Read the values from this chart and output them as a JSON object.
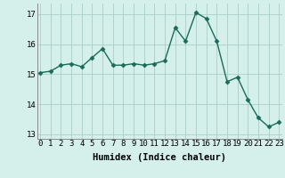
{
  "x": [
    0,
    1,
    2,
    3,
    4,
    5,
    6,
    7,
    8,
    9,
    10,
    11,
    12,
    13,
    14,
    15,
    16,
    17,
    18,
    19,
    20,
    21,
    22,
    23
  ],
  "y": [
    15.05,
    15.1,
    15.3,
    15.35,
    15.25,
    15.55,
    15.85,
    15.3,
    15.3,
    15.35,
    15.3,
    15.35,
    15.45,
    16.55,
    16.1,
    17.05,
    16.85,
    16.1,
    14.75,
    14.9,
    14.15,
    13.55,
    13.25,
    13.4
  ],
  "line_color": "#1a6b5a",
  "marker": "D",
  "marker_size": 2.5,
  "line_width": 1.0,
  "bg_color": "#d5f0eb",
  "grid_color": "#aacec8",
  "xlabel": "Humidex (Indice chaleur)",
  "tick_fontsize": 6.5,
  "xlabel_fontsize": 7.5,
  "ylim": [
    12.85,
    17.35
  ],
  "yticks": [
    13,
    14,
    15,
    16,
    17
  ],
  "xticks": [
    0,
    1,
    2,
    3,
    4,
    5,
    6,
    7,
    8,
    9,
    10,
    11,
    12,
    13,
    14,
    15,
    16,
    17,
    18,
    19,
    20,
    21,
    22,
    23
  ],
  "xlim": [
    -0.3,
    23.3
  ]
}
